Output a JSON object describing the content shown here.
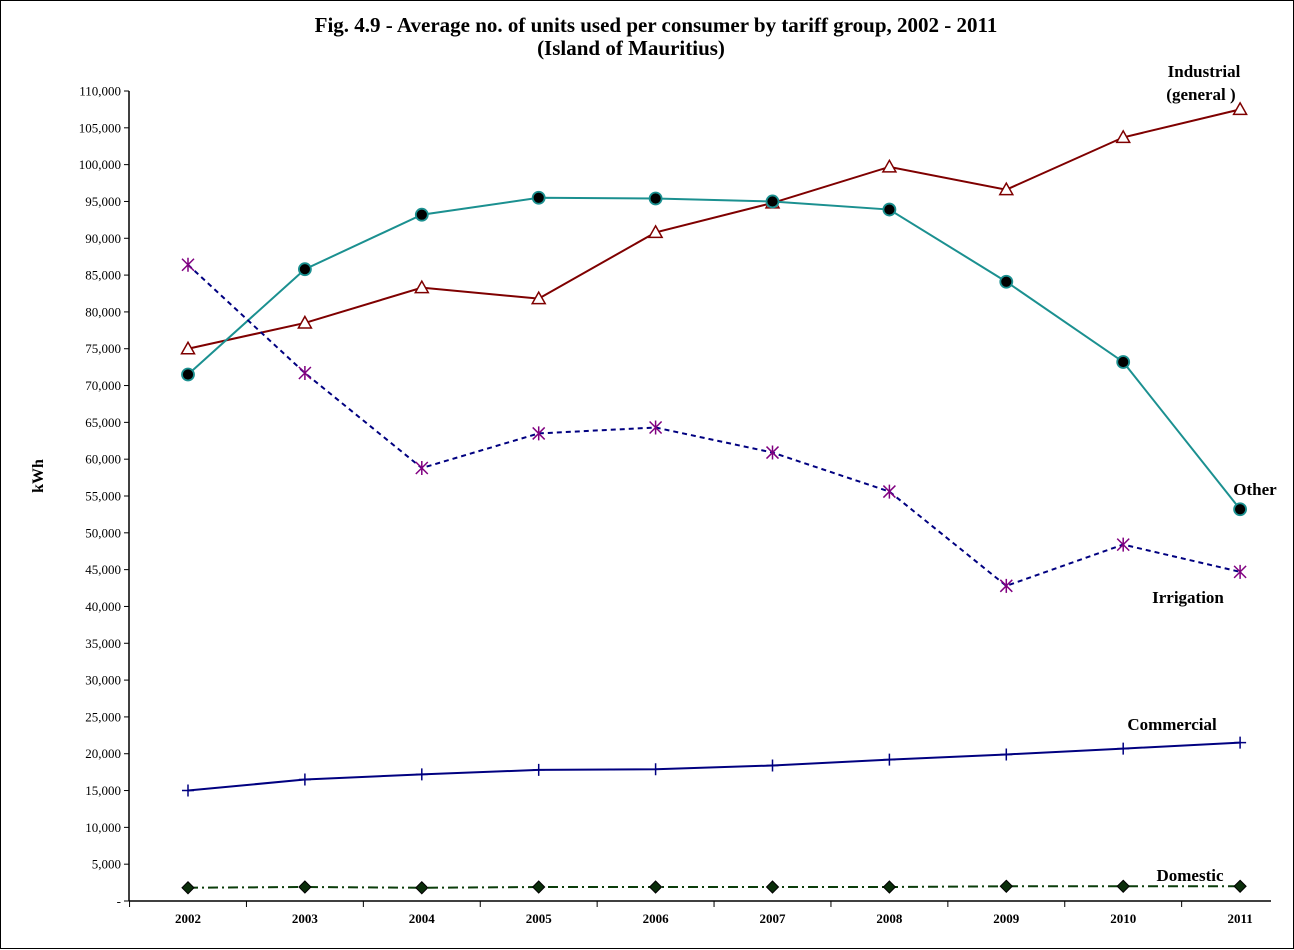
{
  "chart_data": {
    "type": "line",
    "title_line1": "Fig. 4.9 - Average no. of units used per consumer by tariff group, 2002 - 2011",
    "title_line2": "(Island of Mauritius)",
    "ylabel": "kWh",
    "xlabel": "",
    "ylim": [
      0,
      110000
    ],
    "ytick_step": 5000,
    "y_tick_labels": [
      "-",
      "5,000",
      "10,000",
      "15,000",
      "20,000",
      "25,000",
      "30,000",
      "35,000",
      "40,000",
      "45,000",
      "50,000",
      "55,000",
      "60,000",
      "65,000",
      "70,000",
      "75,000",
      "80,000",
      "85,000",
      "90,000",
      "95,000",
      "100,000",
      "105,000",
      "110,000"
    ],
    "x": [
      "2002",
      "2003",
      "2004",
      "2005",
      "2006",
      "2007",
      "2008",
      "2009",
      "2010",
      "2011"
    ],
    "grid": false,
    "legend": "none",
    "series": [
      {
        "key": "industrial",
        "label_lines": [
          "Industrial",
          "(general )"
        ],
        "values": [
          75000,
          78500,
          83300,
          81800,
          90800,
          94800,
          99700,
          96600,
          103700,
          107500
        ],
        "color": "#7f0000",
        "marker": "triangle-open",
        "dash": "solid"
      },
      {
        "key": "other",
        "label_lines": [
          "Other"
        ],
        "values": [
          71500,
          85800,
          93200,
          95500,
          95400,
          95000,
          93900,
          84100,
          73200,
          53200
        ],
        "color": "#1b9090",
        "marker": "circle-filled",
        "dash": "solid"
      },
      {
        "key": "irrigation",
        "label_lines": [
          "Irrigation"
        ],
        "values": [
          86400,
          71700,
          58800,
          63500,
          64300,
          60900,
          55600,
          42800,
          48400,
          44700
        ],
        "color": "#000080",
        "marker_color": "#800080",
        "marker": "asterisk",
        "dash": "dashed"
      },
      {
        "key": "commercial",
        "label_lines": [
          "Commercial"
        ],
        "values": [
          15000,
          16500,
          17200,
          17800,
          17900,
          18400,
          19200,
          19900,
          20700,
          21500
        ],
        "color": "#000080",
        "marker": "plus",
        "dash": "solid"
      },
      {
        "key": "domestic",
        "label_lines": [
          "Domestic"
        ],
        "values": [
          1800,
          1900,
          1800,
          1900,
          1900,
          1900,
          1900,
          2000,
          2000,
          2000
        ],
        "color": "#0b3d0b",
        "marker": "diamond-filled",
        "dash": "dashdot"
      }
    ]
  }
}
